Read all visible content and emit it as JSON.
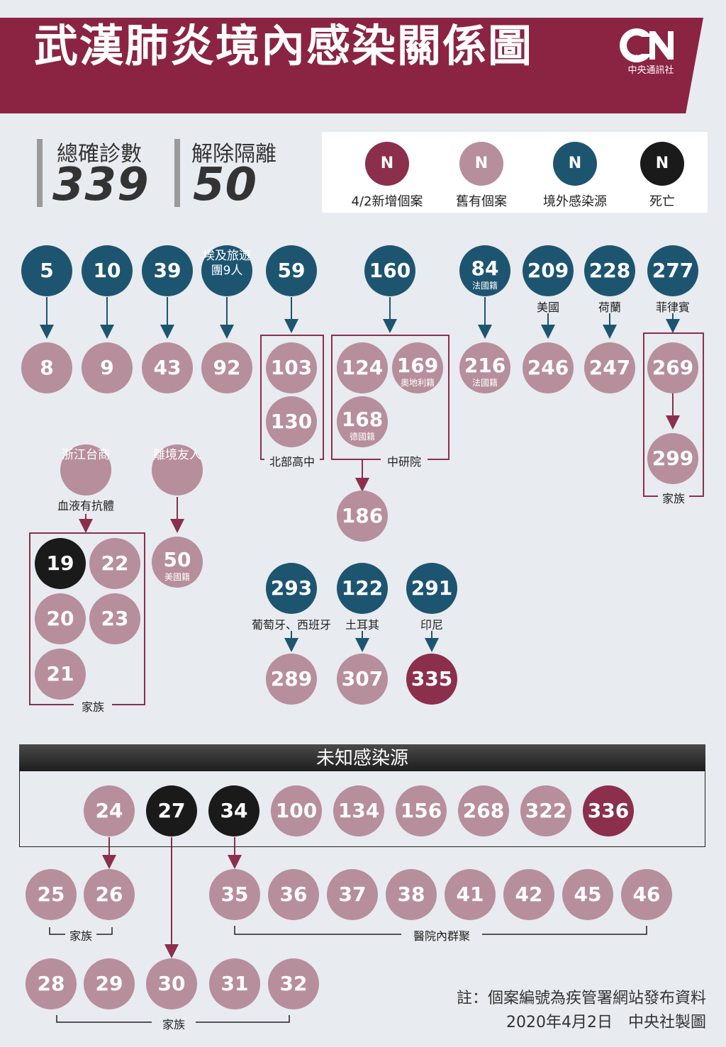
{
  "header": {
    "title": "武漢肺炎境內感染關係圖",
    "logo_text": "中央通訊社"
  },
  "stats": {
    "confirmed_label": "總確診數",
    "confirmed_value": "339",
    "released_label": "解除隔離",
    "released_value": "50"
  },
  "legend": {
    "symbol": "N",
    "items": [
      {
        "label": "4/2新增個案",
        "color": "#8b2f4d"
      },
      {
        "label": "舊有個案",
        "color": "#b78e9c"
      },
      {
        "label": "境外感染源",
        "color": "#1d5571"
      },
      {
        "label": "死亡",
        "color": "#1a1a1a"
      }
    ]
  },
  "nodes": {
    "n5": "5",
    "n8": "8",
    "n10": "10",
    "n9": "9",
    "n39": "39",
    "n43": "43",
    "egypt": "埃及旅遊團9人",
    "n92": "92",
    "n59": "59",
    "n103": "103",
    "n130": "130",
    "n160": "160",
    "n124": "124",
    "n169": "169",
    "n168": "168",
    "n186": "186",
    "n84": "84",
    "n216": "216",
    "n209": "209",
    "n246": "246",
    "n228": "228",
    "n247": "247",
    "n277": "277",
    "n269": "269",
    "n299": "299",
    "zhejiang": "浙江台商",
    "leave": "離境友人",
    "n19": "19",
    "n22": "22",
    "n20": "20",
    "n23": "23",
    "n21": "21",
    "n50": "50",
    "n293": "293",
    "n289": "289",
    "n122": "122",
    "n307": "307",
    "n291": "291",
    "n335": "335",
    "n24": "24",
    "n27": "27",
    "n34": "34",
    "n100": "100",
    "n134": "134",
    "n156": "156",
    "n268": "268",
    "n322": "322",
    "n336": "336",
    "n25": "25",
    "n26": "26",
    "n35": "35",
    "n36": "36",
    "n37": "37",
    "n38": "38",
    "n41": "41",
    "n42": "42",
    "n45": "45",
    "n46": "46",
    "n28": "28",
    "n29": "29",
    "n30": "30",
    "n31": "31",
    "n32": "32"
  },
  "subs": {
    "n84": "法國籍",
    "n216": "法國籍",
    "n169": "奧地利籍",
    "n168": "德國籍",
    "n50": "美國籍"
  },
  "labels": {
    "usa": "美國",
    "netherlands": "荷蘭",
    "philippines": "菲律賓",
    "north_hs": "北部高中",
    "academia": "中研院",
    "family_277": "家族",
    "antibody": "血液有抗體",
    "family_19": "家族",
    "portugal_spain": "葡萄牙、西班牙",
    "turkey": "土耳其",
    "indonesia": "印尼",
    "unknown_source": "未知感染源",
    "family_25": "家族",
    "hospital_cluster": "醫院內群聚",
    "family_28": "家族"
  },
  "note": {
    "line1": "註：個案編號為疾管署網站發布資料",
    "line2": "2020年4月2日　中央社製圖"
  }
}
